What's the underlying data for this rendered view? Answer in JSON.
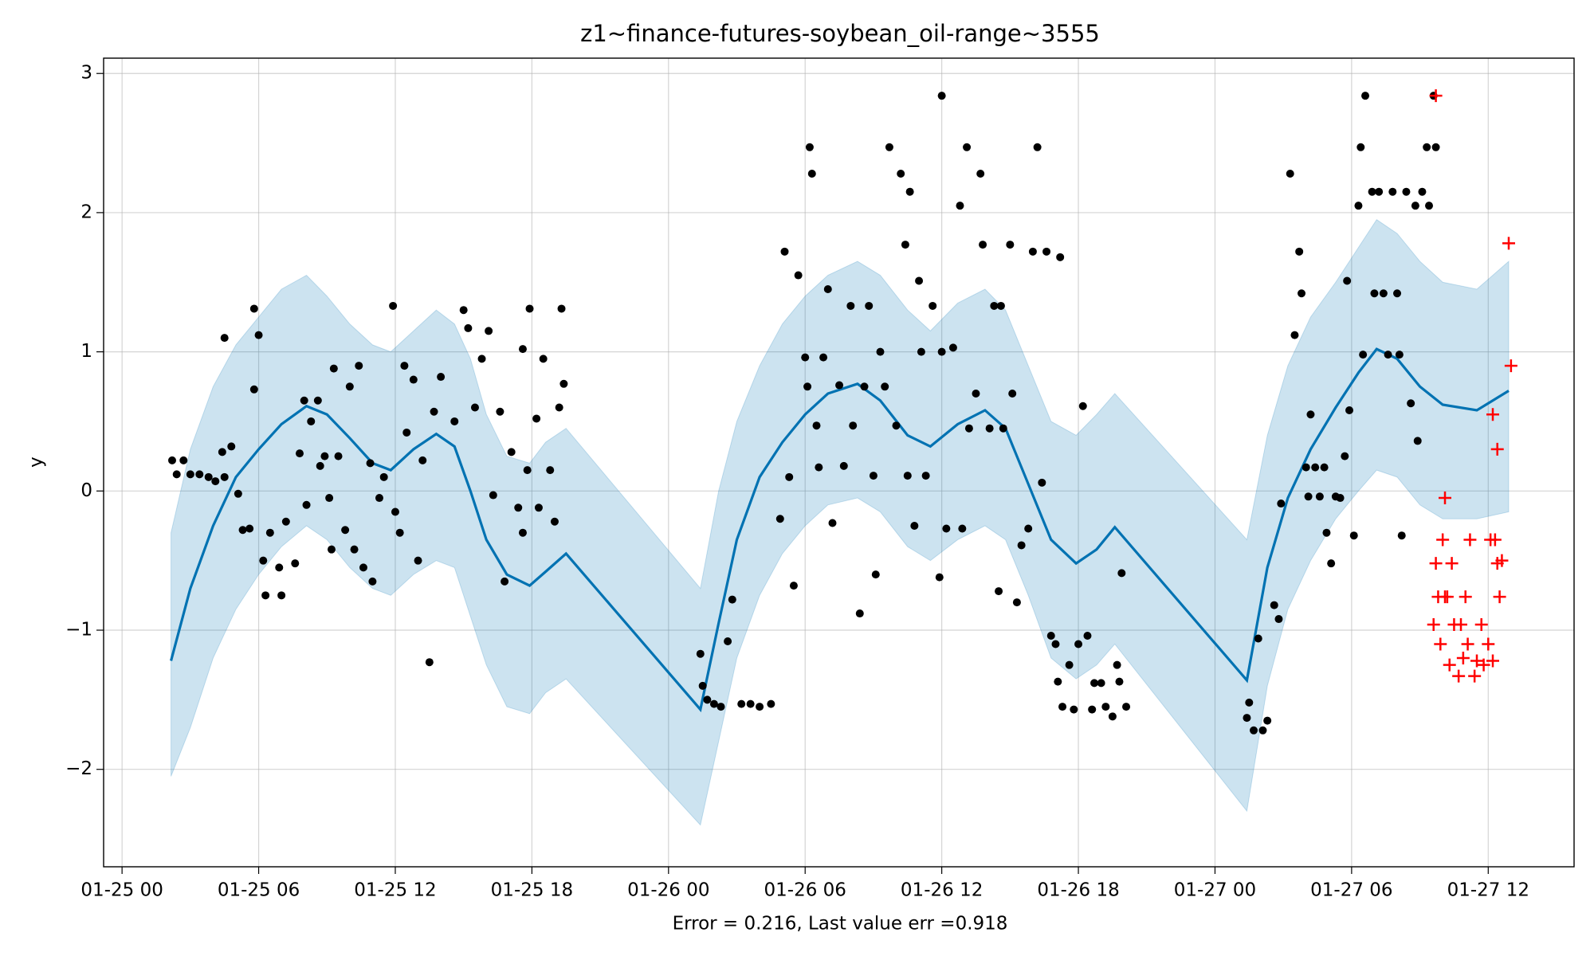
{
  "chart_data": {
    "type": "forecast",
    "title": "z1~finance-futures-soybean_oil-range~3555",
    "xlabel": "Error = 0.216, Last value err =0.918",
    "ylabel": "y",
    "grid": true,
    "xlim": [
      -0.81,
      63.77
    ],
    "ylim": [
      -2.7,
      3.11
    ],
    "xticks": [
      {
        "value": 0,
        "label": "01-25 00"
      },
      {
        "value": 6,
        "label": "01-25 06"
      },
      {
        "value": 12,
        "label": "01-25 12"
      },
      {
        "value": 18,
        "label": "01-25 18"
      },
      {
        "value": 24,
        "label": "01-26 00"
      },
      {
        "value": 30,
        "label": "01-26 06"
      },
      {
        "value": 36,
        "label": "01-26 12"
      },
      {
        "value": 42,
        "label": "01-26 18"
      },
      {
        "value": 48,
        "label": "01-27 00"
      },
      {
        "value": 54,
        "label": "01-27 06"
      },
      {
        "value": 60,
        "label": "01-27 12"
      }
    ],
    "yticks": [
      {
        "value": -2,
        "label": "−2"
      },
      {
        "value": -1,
        "label": "−1"
      },
      0,
      1,
      2,
      3
    ],
    "series": [
      {
        "type": "band",
        "color": "#0072b2",
        "x": [
          2.15,
          3,
          4,
          5,
          6,
          7,
          8.1,
          9,
          10,
          11,
          11.8,
          12.8,
          13.8,
          14.6,
          15.3,
          16,
          16.9,
          17.9,
          18.6,
          19.5,
          25.4,
          26.2,
          27,
          28,
          29,
          30,
          31,
          32.3,
          33.3,
          34.5,
          35.5,
          36.7,
          37.9,
          38.8,
          39.8,
          40.8,
          41.9,
          42.8,
          43.6,
          49.4,
          50.3,
          51.2,
          52.2,
          53.3,
          54.3,
          55.1,
          56,
          57,
          58,
          59.5,
          60.9
        ],
        "lower": [
          -2.05,
          -1.7,
          -1.2,
          -0.85,
          -0.6,
          -0.4,
          -0.25,
          -0.35,
          -0.55,
          -0.7,
          -0.75,
          -0.6,
          -0.5,
          -0.55,
          -0.9,
          -1.25,
          -1.55,
          -1.6,
          -1.45,
          -1.35,
          -2.4,
          -1.8,
          -1.2,
          -0.75,
          -0.45,
          -0.25,
          -0.1,
          -0.05,
          -0.15,
          -0.4,
          -0.5,
          -0.35,
          -0.25,
          -0.35,
          -0.75,
          -1.2,
          -1.35,
          -1.25,
          -1.1,
          -2.3,
          -1.4,
          -0.85,
          -0.5,
          -0.2,
          0.0,
          0.15,
          0.1,
          -0.1,
          -0.2,
          -0.2,
          -0.15
        ],
        "upper": [
          -0.3,
          0.3,
          0.75,
          1.05,
          1.25,
          1.45,
          1.55,
          1.4,
          1.2,
          1.05,
          1.0,
          1.15,
          1.3,
          1.2,
          0.95,
          0.55,
          0.25,
          0.2,
          0.35,
          0.45,
          -0.7,
          0.0,
          0.5,
          0.9,
          1.2,
          1.4,
          1.55,
          1.65,
          1.55,
          1.3,
          1.15,
          1.35,
          1.45,
          1.3,
          0.9,
          0.5,
          0.4,
          0.55,
          0.7,
          -0.35,
          0.4,
          0.9,
          1.25,
          1.5,
          1.75,
          1.95,
          1.85,
          1.65,
          1.5,
          1.45,
          1.65
        ]
      },
      {
        "type": "line",
        "color": "#0072b2",
        "x": [
          2.15,
          3,
          4,
          5,
          6,
          7,
          8.1,
          9,
          10,
          11,
          11.8,
          12.8,
          13.8,
          14.6,
          15.3,
          16,
          16.9,
          17.9,
          18.6,
          19.5,
          25.4,
          26.2,
          27,
          28,
          29,
          30,
          31,
          32.3,
          33.3,
          34.5,
          35.5,
          36.7,
          37.9,
          38.8,
          39.8,
          40.8,
          41.9,
          42.8,
          43.6,
          49.4,
          50.3,
          51.2,
          52.2,
          53.3,
          54.3,
          55.1,
          56,
          57,
          58,
          59.5,
          60.9
        ],
        "values": [
          -1.22,
          -0.7,
          -0.25,
          0.1,
          0.3,
          0.48,
          0.61,
          0.55,
          0.38,
          0.2,
          0.15,
          0.3,
          0.41,
          0.32,
          0.0,
          -0.35,
          -0.6,
          -0.68,
          -0.58,
          -0.45,
          -1.57,
          -0.95,
          -0.35,
          0.1,
          0.35,
          0.55,
          0.7,
          0.77,
          0.65,
          0.4,
          0.32,
          0.48,
          0.58,
          0.45,
          0.05,
          -0.35,
          -0.52,
          -0.42,
          -0.26,
          -1.36,
          -0.55,
          -0.05,
          0.3,
          0.6,
          0.85,
          1.02,
          0.95,
          0.75,
          0.62,
          0.58,
          0.72
        ]
      },
      {
        "type": "scatter",
        "marker": "o",
        "color": "#000000",
        "x": [
          2.2,
          2.4,
          2.7,
          3,
          3.4,
          3.8,
          4.1,
          4.5,
          4.4,
          4.5,
          4.8,
          5.1,
          5.3,
          5.6,
          5.8,
          5.8,
          6,
          6.2,
          6.3,
          6.5,
          6.9,
          7,
          7.2,
          7.6,
          7.8,
          8,
          8.1,
          8.3,
          8.6,
          8.7,
          8.9,
          9.1,
          9.2,
          9.3,
          9.5,
          9.8,
          10,
          10.2,
          10.4,
          10.6,
          10.9,
          11,
          11.3,
          11.5,
          11.9,
          12,
          12.2,
          12.4,
          12.5,
          12.8,
          13,
          13.2,
          13.5,
          13.7,
          14,
          14.6,
          15,
          15.2,
          15.5,
          15.8,
          16.1,
          16.3,
          16.6,
          16.8,
          17.1,
          17.4,
          17.6,
          17.6,
          17.8,
          17.9,
          18.2,
          18.3,
          18.5,
          18.8,
          19,
          19.2,
          19.3,
          19.4,
          25.4,
          25.5,
          25.7,
          26,
          26.3,
          26.6,
          26.8,
          27.2,
          27.6,
          28,
          28.5,
          28.9,
          29.1,
          29.3,
          29.5,
          29.7,
          30,
          30.1,
          30.2,
          30.3,
          30.5,
          30.6,
          30.8,
          31,
          31.2,
          31.5,
          31.7,
          32,
          32.1,
          32.4,
          32.6,
          32.8,
          33,
          33.1,
          33.3,
          33.5,
          33.7,
          34,
          34.2,
          34.4,
          34.5,
          34.6,
          34.8,
          35,
          35.1,
          35.3,
          35.6,
          35.9,
          36,
          36.2,
          36.5,
          36.8,
          36.9,
          37.1,
          37.2,
          37.5,
          37.7,
          37.8,
          38.1,
          38.3,
          38.5,
          38.6,
          38.7,
          39,
          39.1,
          39.3,
          39.5,
          39.8,
          40,
          40.2,
          40.4,
          40.6,
          40.8,
          41,
          41.1,
          41.3,
          41.6,
          41.8,
          42,
          42.2,
          42.4,
          42.6,
          42.7,
          43,
          43.2,
          43.5,
          43.7,
          43.8,
          43.9,
          44.1,
          41.2,
          36.0,
          49.4,
          49.5,
          49.7,
          49.9,
          50.1,
          50.3,
          50.6,
          50.8,
          50.9,
          51.3,
          51.5,
          51.7,
          51.8,
          52,
          52.1,
          52.2,
          52.4,
          52.6,
          52.8,
          52.9,
          53.1,
          53.3,
          53.5,
          53.7,
          53.8,
          53.9,
          54.1,
          54.3,
          54.4,
          54.6,
          54.5,
          54.9,
          55,
          55.2,
          55.4,
          55.6,
          55.8,
          56,
          56.1,
          56.2,
          56.4,
          56.6,
          56.8,
          56.9,
          57.1,
          57.3,
          57.4,
          57.6,
          57.7
        ],
        "values": [
          0.22,
          0.12,
          0.22,
          0.12,
          0.12,
          0.1,
          0.07,
          0.1,
          0.28,
          1.1,
          0.32,
          -0.02,
          -0.28,
          -0.27,
          0.73,
          1.31,
          1.12,
          -0.5,
          -0.75,
          -0.3,
          -0.55,
          -0.75,
          -0.22,
          -0.52,
          0.27,
          0.65,
          -0.1,
          0.5,
          0.65,
          0.18,
          0.25,
          -0.05,
          -0.42,
          0.88,
          0.25,
          -0.28,
          0.75,
          -0.42,
          0.9,
          -0.55,
          0.2,
          -0.65,
          -0.05,
          0.1,
          1.33,
          -0.15,
          -0.3,
          0.9,
          0.42,
          0.8,
          -0.5,
          0.22,
          -1.23,
          0.57,
          0.82,
          0.5,
          1.3,
          1.17,
          0.6,
          0.95,
          1.15,
          -0.03,
          0.57,
          -0.65,
          0.28,
          -0.12,
          -0.3,
          1.02,
          0.15,
          1.31,
          0.52,
          -0.12,
          0.95,
          0.15,
          -0.22,
          0.6,
          1.31,
          0.77,
          -1.17,
          -1.4,
          -1.5,
          -1.53,
          -1.55,
          -1.08,
          -0.78,
          -1.53,
          -1.53,
          -1.55,
          -1.53,
          -0.2,
          1.72,
          0.1,
          -0.68,
          1.55,
          0.96,
          0.75,
          2.47,
          2.28,
          0.47,
          0.17,
          0.96,
          1.45,
          -0.23,
          0.76,
          0.18,
          1.33,
          0.47,
          -0.88,
          0.75,
          1.33,
          0.11,
          -0.6,
          1.0,
          0.75,
          2.47,
          0.47,
          2.28,
          1.77,
          0.11,
          2.15,
          -0.25,
          1.51,
          1.0,
          0.11,
          1.33,
          -0.62,
          1.0,
          -0.27,
          1.03,
          2.05,
          -0.27,
          2.47,
          0.45,
          0.7,
          2.28,
          1.77,
          0.45,
          1.33,
          -0.72,
          1.33,
          0.45,
          1.77,
          0.7,
          -0.8,
          -0.39,
          -0.27,
          1.72,
          2.47,
          0.06,
          1.72,
          -1.04,
          -1.1,
          -1.37,
          -1.55,
          -1.25,
          -1.57,
          -1.1,
          0.61,
          -1.04,
          -1.57,
          -1.38,
          -1.38,
          -1.55,
          -1.62,
          -1.25,
          -1.37,
          -0.59,
          -1.55,
          1.68,
          2.84,
          -1.63,
          -1.52,
          -1.72,
          -1.06,
          -1.72,
          -1.65,
          -0.82,
          -0.92,
          -0.09,
          2.28,
          1.12,
          1.72,
          1.42,
          0.17,
          -0.04,
          0.55,
          0.17,
          -0.04,
          0.17,
          -0.3,
          -0.52,
          -0.04,
          -0.05,
          0.25,
          1.51,
          0.58,
          -0.32,
          2.05,
          2.47,
          2.84,
          0.98,
          2.15,
          1.42,
          2.15,
          1.42,
          0.98,
          2.15,
          1.42,
          0.98,
          -0.32,
          2.15,
          0.63,
          2.05,
          0.36,
          2.15,
          2.47,
          2.05,
          2.84,
          2.47
        ]
      },
      {
        "type": "scatter",
        "marker": "+",
        "color": "#ff0000",
        "x": [
          57.7,
          58.1,
          57.7,
          57.8,
          58,
          58.1,
          58.3,
          58.4,
          58.5,
          58.7,
          58.8,
          57.9,
          57.6,
          58.9,
          59.1,
          59.2,
          59.4,
          59.5,
          59.7,
          59.8,
          60,
          60.1,
          60.2,
          60.3,
          59,
          58.2,
          60.4,
          60.5,
          60.6,
          60.2,
          60.4,
          60.9,
          61
        ],
        "values": [
          2.84,
          -0.05,
          -0.52,
          -0.76,
          -0.35,
          -0.76,
          -1.25,
          -0.52,
          -0.96,
          -1.33,
          -0.96,
          -1.1,
          -0.96,
          -1.2,
          -1.1,
          -0.35,
          -1.33,
          -1.22,
          -0.96,
          -1.25,
          -1.1,
          -0.35,
          -1.22,
          -0.35,
          -0.76,
          -0.76,
          -0.52,
          -0.76,
          -0.5,
          0.55,
          0.3,
          1.78,
          0.9
        ]
      }
    ]
  }
}
